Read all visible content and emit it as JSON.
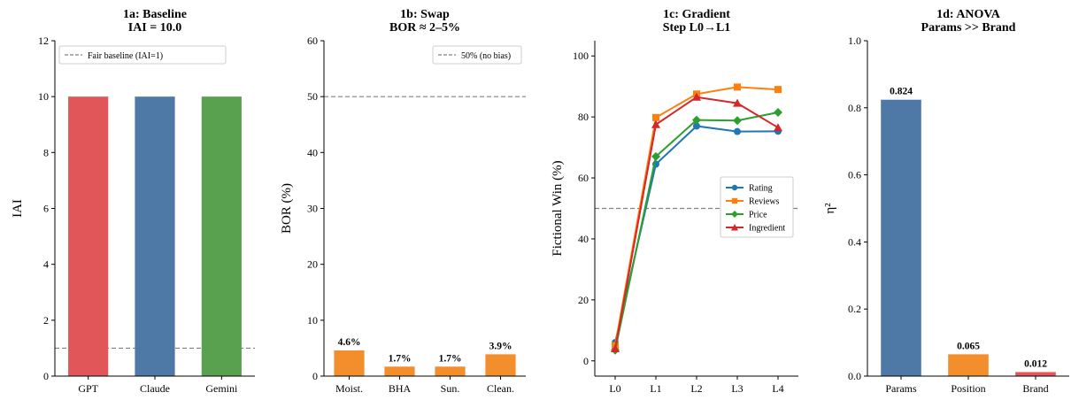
{
  "colors": {
    "red": "#e15759",
    "blue": "#4e79a7",
    "green": "#59a14f",
    "orange": "#f28e2b",
    "line_blue": "#1f77b4",
    "line_orange": "#ff7f0e",
    "line_green": "#2ca02c",
    "line_red": "#d62728",
    "baseline_gray": "#808080"
  },
  "chart_data": [
    {
      "id": "1a",
      "type": "bar",
      "title": [
        "1a: Baseline",
        "IAI = 10.0"
      ],
      "xlabel": "",
      "ylabel": "IAI",
      "categories": [
        "GPT",
        "Claude",
        "Gemini"
      ],
      "values": [
        10,
        10,
        10
      ],
      "bar_colors": [
        "#e15759",
        "#4e79a7",
        "#59a14f"
      ],
      "ylim": [
        0,
        12
      ],
      "yticks": [
        0,
        2,
        4,
        6,
        8,
        10,
        12
      ],
      "reference_line": {
        "y": 1,
        "label": "Fair baseline (IAI=1)"
      },
      "legend": "top-left"
    },
    {
      "id": "1b",
      "type": "bar",
      "title": [
        "1b: Swap",
        "BOR ≈ 2–5%"
      ],
      "xlabel": "",
      "ylabel": "BOR (%)",
      "categories": [
        "Moist.",
        "BHA",
        "Sun.",
        "Clean."
      ],
      "values": [
        4.6,
        1.7,
        1.7,
        3.9
      ],
      "data_labels": [
        "4.6%",
        "1.7%",
        "1.7%",
        "3.9%"
      ],
      "bar_colors": [
        "#f28e2b",
        "#f28e2b",
        "#f28e2b",
        "#f28e2b"
      ],
      "ylim": [
        0,
        60
      ],
      "yticks": [
        0,
        10,
        20,
        30,
        40,
        50,
        60
      ],
      "reference_line": {
        "y": 50,
        "label": "50% (no bias)"
      },
      "legend": "top-right"
    },
    {
      "id": "1c",
      "type": "line",
      "title": [
        "1c: Gradient",
        "Step L0→L1"
      ],
      "xlabel": "",
      "ylabel": "Fictional Win (%)",
      "categories": [
        "L0",
        "L1",
        "L2",
        "L3",
        "L4"
      ],
      "series": [
        {
          "name": "Rating",
          "values": [
            6,
            64.5,
            77,
            75.2,
            75.3
          ],
          "color": "#1f77b4",
          "marker": "circle"
        },
        {
          "name": "Reviews",
          "values": [
            5,
            79.8,
            87.5,
            89.8,
            89
          ],
          "color": "#ff7f0e",
          "marker": "square"
        },
        {
          "name": "Price",
          "values": [
            3.5,
            67,
            79,
            78.8,
            81.5
          ],
          "color": "#2ca02c",
          "marker": "diamond"
        },
        {
          "name": "Ingredient",
          "values": [
            4,
            77.5,
            86.5,
            84.5,
            76.5
          ],
          "color": "#d62728",
          "marker": "triangle"
        }
      ],
      "ylim": [
        -5,
        105
      ],
      "yticks": [
        0,
        20,
        40,
        60,
        80,
        100
      ],
      "reference_line": {
        "y": 50
      },
      "legend": "center-right"
    },
    {
      "id": "1d",
      "type": "bar",
      "title": [
        "1d: ANOVA",
        "Params >> Brand"
      ],
      "xlabel": "",
      "ylabel": "η²",
      "categories": [
        "Params",
        "Position",
        "Brand"
      ],
      "values": [
        0.824,
        0.065,
        0.012
      ],
      "data_labels": [
        "0.824",
        "0.065",
        "0.012"
      ],
      "bar_colors": [
        "#4e79a7",
        "#f28e2b",
        "#e15759"
      ],
      "ylim": [
        0,
        1.0
      ],
      "yticks": [
        "0.0",
        "0.2",
        "0.4",
        "0.6",
        "0.8",
        "1.0"
      ]
    }
  ]
}
